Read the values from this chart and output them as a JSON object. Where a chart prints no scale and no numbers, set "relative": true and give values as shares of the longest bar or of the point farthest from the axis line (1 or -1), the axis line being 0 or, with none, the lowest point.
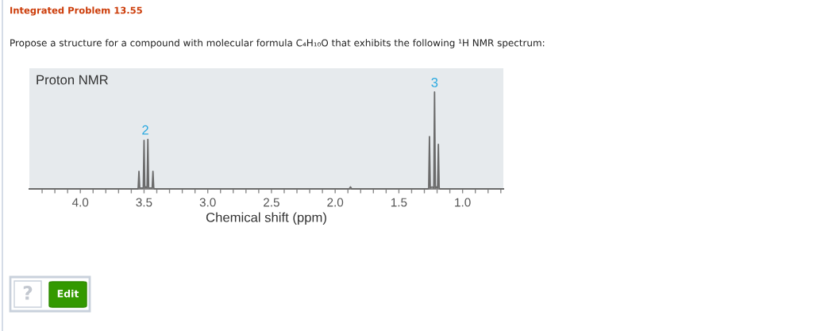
{
  "chart_data": {
    "type": "line",
    "title": "Integrated Problem 13.55",
    "subtitle": "Propose a structure for a compound with molecular formula C₄H₁₀O that exhibits the following ¹H NMR spectrum:",
    "xlabel": "Chemical shift (ppm)",
    "relative": true,
    "tick_labels": "x",
    "line_style": "solid",
    "xlim": [
      4.4,
      0.68
    ],
    "xticks": [
      {
        "value": 4.3,
        "label": null
      },
      {
        "value": 4.2,
        "label": null
      },
      {
        "value": 4.1,
        "label": null
      },
      {
        "value": 4,
        "label": "4.0"
      },
      {
        "value": 3.9,
        "label": null
      },
      {
        "value": 3.8,
        "label": null
      },
      {
        "value": 3.7,
        "label": null
      },
      {
        "value": 3.6,
        "label": null
      },
      {
        "value": 3.5,
        "label": "3.5"
      },
      {
        "value": 3.4,
        "label": null
      },
      {
        "value": 3.3,
        "label": null
      },
      {
        "value": 3.2,
        "label": null
      },
      {
        "value": 3.1,
        "label": null
      },
      {
        "value": 3,
        "label": "3.0"
      },
      {
        "value": 2.9,
        "label": null
      },
      {
        "value": 2.8,
        "label": null
      },
      {
        "value": 2.7,
        "label": null
      },
      {
        "value": 2.6,
        "label": null
      },
      {
        "value": 2.5,
        "label": "2.5"
      },
      {
        "value": 2.4,
        "label": null
      },
      {
        "value": 2.3,
        "label": null
      },
      {
        "value": 2.2,
        "label": null
      },
      {
        "value": 2.1,
        "label": null
      },
      {
        "value": 2,
        "label": "2.0"
      },
      {
        "value": 1.9,
        "label": null
      },
      {
        "value": 1.8,
        "label": null
      },
      {
        "value": 1.7,
        "label": null
      },
      {
        "value": 1.6,
        "label": null
      },
      {
        "value": 1.5,
        "label": "1.5"
      },
      {
        "value": 1.4,
        "label": null
      },
      {
        "value": 1.3,
        "label": null
      },
      {
        "value": 1.2,
        "label": null
      },
      {
        "value": 1.1,
        "label": null
      },
      {
        "value": 1,
        "label": "1.0"
      },
      {
        "value": 0.9,
        "label": null
      },
      {
        "value": 0.8,
        "label": null
      },
      {
        "value": 0.7,
        "label": null
      }
    ],
    "x": [
      4.4,
      3.55,
      3.546,
      3.54,
      3.534,
      3.52,
      3.506,
      3.5,
      3.494,
      3.485,
      3.476,
      3.47,
      3.464,
      3.45,
      3.436,
      3.43,
      3.424,
      3.418,
      1.89,
      1.88,
      1.87,
      1.272,
      1.266,
      1.26,
      1.254,
      1.24,
      1.226,
      1.22,
      1.214,
      1.205,
      1.196,
      1.19,
      1.184,
      1.178,
      0.68
    ],
    "series": [
      {
        "color": "#6b6b6b",
        "values": [
          0,
          0,
          0.01,
          0.18,
          0.01,
          0.01,
          0.01,
          0.5,
          0.01,
          0.02,
          0.01,
          0.51,
          0.01,
          0.01,
          0.01,
          0.18,
          0.01,
          0,
          0,
          0.02,
          0,
          0,
          0.01,
          0.54,
          0.01,
          0.02,
          0.01,
          1,
          0.01,
          0.02,
          0.01,
          0.46,
          0.01,
          0,
          0
        ]
      }
    ],
    "annotations": [
      "Proton NMR",
      {
        "text": "2",
        "x": 3.49,
        "y": 0.51
      },
      {
        "text": "3",
        "x": 1.22,
        "y": 1
      },
      "?",
      "Edit"
    ]
  }
}
